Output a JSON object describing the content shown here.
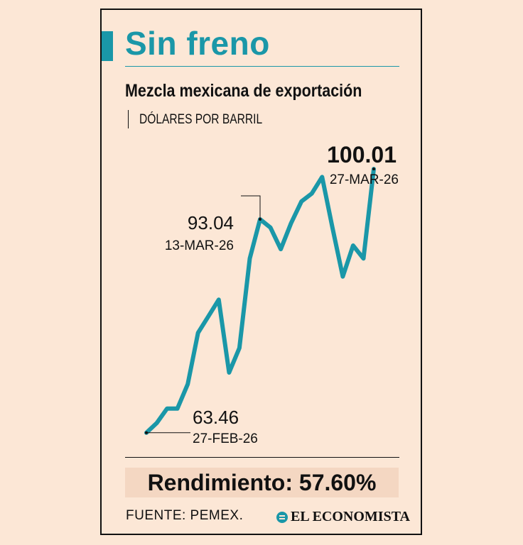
{
  "header": {
    "title": "Sin freno",
    "subtitle": "Mezcla mexicana de exportación",
    "unit": "DÓLARES POR BARRIL"
  },
  "chart_data": {
    "type": "line",
    "title": "Mezcla mexicana de exportación",
    "ylabel": "DÓLARES POR BARRIL",
    "xlabel": "",
    "ylim": [
      60,
      101
    ],
    "x": [
      "27-FEB-26",
      "",
      "",
      "",
      "",
      "",
      "",
      "",
      "",
      "",
      "",
      "13-MAR-26",
      "",
      "",
      "",
      "",
      "",
      "",
      "",
      "",
      "",
      "",
      "27-MAR-26"
    ],
    "series": [
      {
        "values": [
          63.46,
          64.8,
          66.8,
          66.8,
          70.2,
          77.3,
          79.6,
          81.9,
          71.8,
          75.2,
          87.6,
          93.04,
          91.9,
          88.9,
          92.5,
          95.5,
          96.6,
          98.9,
          91.9,
          85.1,
          89.4,
          87.6,
          100.01
        ]
      }
    ],
    "annotations": [
      {
        "index": 0,
        "value": "63.46",
        "date": "27-FEB-26"
      },
      {
        "index": 11,
        "value": "93.04",
        "date": "13-MAR-26"
      },
      {
        "index": 22,
        "value": "100.01",
        "date": "27-MAR-26"
      }
    ],
    "line_color": "#1a97a8"
  },
  "footer": {
    "performance": "Rendimiento: 57.60%",
    "source": "FUENTE: PEMEX.",
    "brand": "EL ECONOMISTA"
  }
}
